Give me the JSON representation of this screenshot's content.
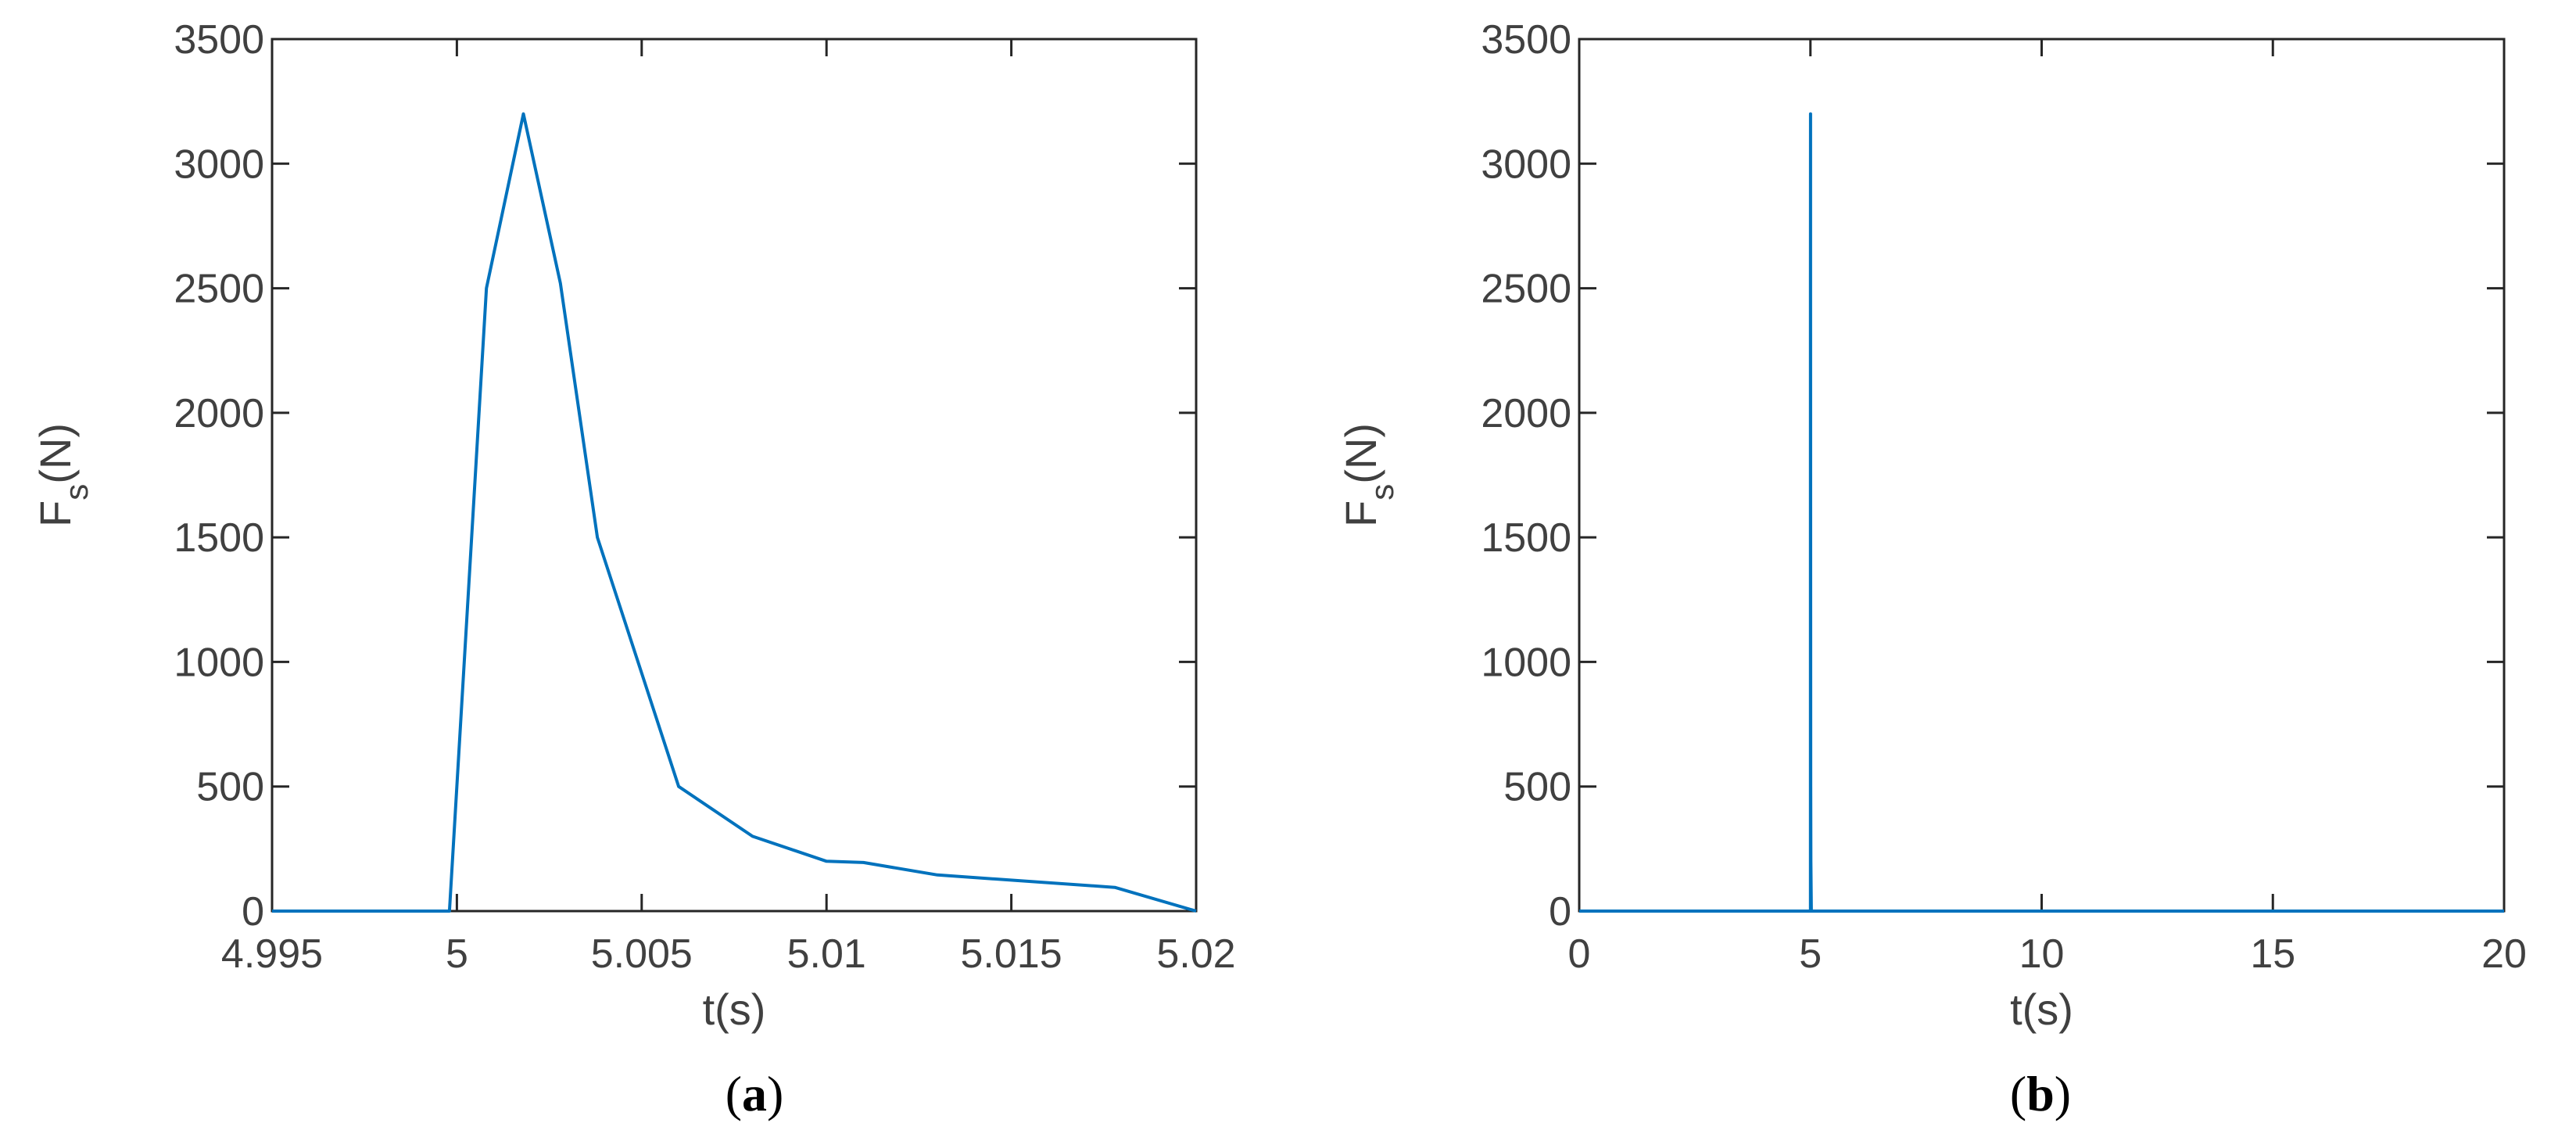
{
  "colors": {
    "line": "#0072BD",
    "axes": "#262626",
    "text": "#404040"
  },
  "chart_data": [
    {
      "type": "line",
      "panel": "(a)",
      "panel_letter": "a",
      "xlabel": "t(s)",
      "ylabel_main": "F",
      "ylabel_sub": "s",
      "ylabel_unit": "(N)",
      "xlim": [
        4.995,
        5.02
      ],
      "ylim": [
        0,
        3500
      ],
      "xticks": [
        4.995,
        5,
        5.005,
        5.01,
        5.015,
        5.02
      ],
      "xtick_labels": [
        "4.995",
        "5",
        "5.005",
        "5.01",
        "5.015",
        "5.02"
      ],
      "yticks": [
        0,
        500,
        1000,
        1500,
        2000,
        2500,
        3000,
        3500
      ],
      "ytick_labels": [
        "0",
        "500",
        "1000",
        "1500",
        "2000",
        "2500",
        "3000",
        "3500"
      ],
      "grid": false,
      "series": [
        {
          "x": [
            4.995,
            4.9998,
            5.0008,
            5.0018,
            5.0028,
            5.0038,
            5.006,
            5.008,
            5.01,
            5.011,
            5.013,
            5.0178,
            5.02
          ],
          "y": [
            0,
            0,
            2500,
            3200,
            2520,
            1500,
            500,
            300,
            200,
            195,
            145,
            95,
            0
          ]
        }
      ]
    },
    {
      "type": "line",
      "panel": "(b)",
      "panel_letter": "b",
      "xlabel": "t(s)",
      "ylabel_main": "F",
      "ylabel_sub": "s",
      "ylabel_unit": "(N)",
      "xlim": [
        0,
        20
      ],
      "ylim": [
        0,
        3500
      ],
      "xticks": [
        0,
        5,
        10,
        15,
        20
      ],
      "xtick_labels": [
        "0",
        "5",
        "10",
        "15",
        "20"
      ],
      "yticks": [
        0,
        500,
        1000,
        1500,
        2000,
        2500,
        3000,
        3500
      ],
      "ytick_labels": [
        "0",
        "500",
        "1000",
        "1500",
        "2000",
        "2500",
        "3000",
        "3500"
      ],
      "grid": false,
      "series": [
        {
          "x": [
            0,
            5.0,
            5.001,
            5.002,
            5.003,
            5.006,
            5.01,
            5.02,
            20
          ],
          "y": [
            0,
            0,
            2500,
            3200,
            2520,
            500,
            200,
            0,
            0
          ]
        }
      ]
    }
  ]
}
